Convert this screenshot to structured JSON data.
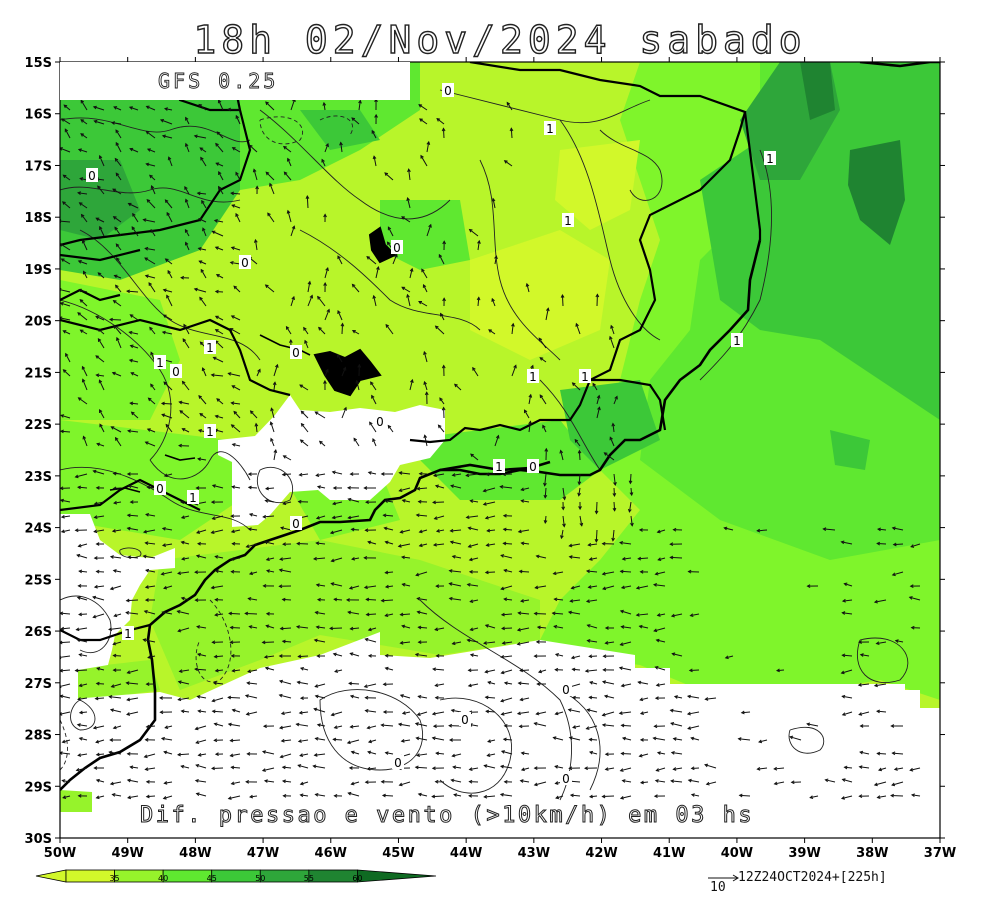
{
  "title": "18h 02/Nov/2024 sabado",
  "model_label": "GFS 0.25",
  "caption": "Dif. pressao e vento (>10km/h) em 03 hs",
  "run_info": "12Z24OCT2024+[225h]",
  "vector_reference": "10",
  "lat_labels": [
    "15S",
    "16S",
    "17S",
    "18S",
    "19S",
    "20S",
    "21S",
    "22S",
    "23S",
    "24S",
    "25S",
    "26S",
    "27S",
    "28S",
    "29S",
    "30S"
  ],
  "lon_labels": [
    "50W",
    "49W",
    "48W",
    "47W",
    "46W",
    "45W",
    "44W",
    "43W",
    "42W",
    "41W",
    "40W",
    "39W",
    "38W",
    "37W"
  ],
  "colorbar": {
    "values": [
      "35",
      "40",
      "45",
      "50",
      "55",
      "60"
    ],
    "colors": [
      "#d2f82a",
      "#96f32b",
      "#5fe830",
      "#3cc838",
      "#2ea63a",
      "#1f8431",
      "#0f6a22"
    ]
  },
  "contour_labels": [
    "0",
    "1"
  ]
}
